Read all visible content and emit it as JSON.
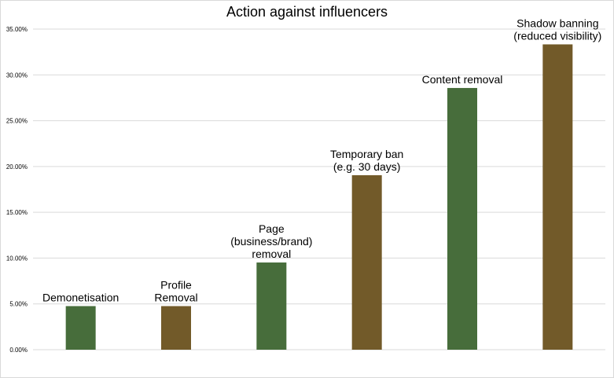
{
  "chart_data": {
    "type": "bar",
    "title": "Action against influencers",
    "xlabel": "",
    "ylabel": "",
    "ylim": [
      0,
      0.35
    ],
    "yticks": [
      "0.00%",
      "5.00%",
      "10.00%",
      "15.00%",
      "20.00%",
      "25.00%",
      "30.00%",
      "35.00%"
    ],
    "grid": true,
    "legend": "none",
    "categories": [
      "Demonetisation",
      "Profile Removal",
      "Page (business/brand) removal",
      "Temporary ban (e.g. 30 days)",
      "Content removal",
      "Shadow banning (reduced visibility)"
    ],
    "category_label_lines": [
      [
        "Demonetisation"
      ],
      [
        "Profile",
        "Removal"
      ],
      [
        "Page",
        "(business/brand)",
        "removal"
      ],
      [
        "Temporary ban",
        "(e.g. 30 days)"
      ],
      [
        "Content removal"
      ],
      [
        "Shadow banning",
        "(reduced visibility)"
      ]
    ],
    "values": [
      0.0476,
      0.0476,
      0.0952,
      0.1905,
      0.2857,
      0.3333
    ],
    "colors": [
      "#476d3b",
      "#725a29",
      "#476d3b",
      "#725a29",
      "#476d3b",
      "#725a29"
    ],
    "gridline_color": "#d9d9d9"
  }
}
